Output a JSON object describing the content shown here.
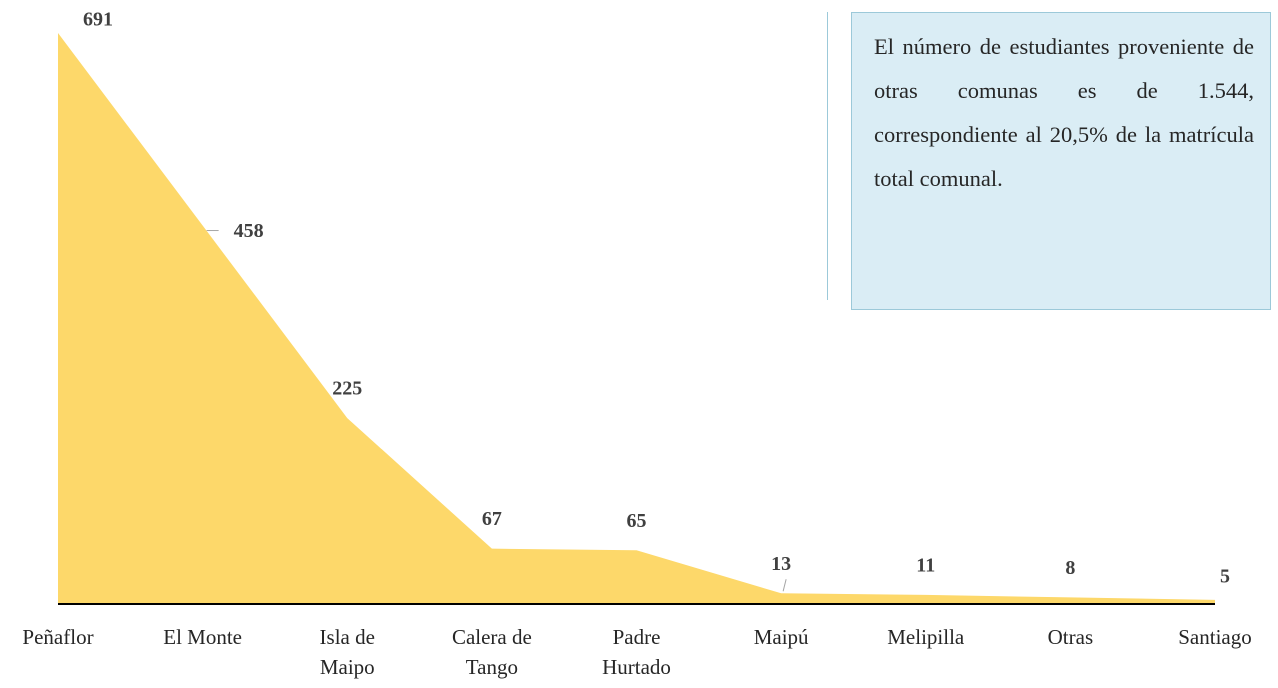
{
  "chart_data": {
    "type": "area",
    "categories": [
      "Peñaflor",
      "El Monte",
      "Isla de Maipo",
      "Calera de Tango",
      "Padre Hurtado",
      "Maipú",
      "Melipilla",
      "Otras",
      "Santiago"
    ],
    "values": [
      691,
      458,
      225,
      67,
      65,
      13,
      11,
      8,
      5
    ],
    "color": "#fdd86a",
    "annotation": "El número de estudiantes proveniente de otras comunas es de 1.544, correspondiente al 20,5% de la matrícula total comunal."
  }
}
